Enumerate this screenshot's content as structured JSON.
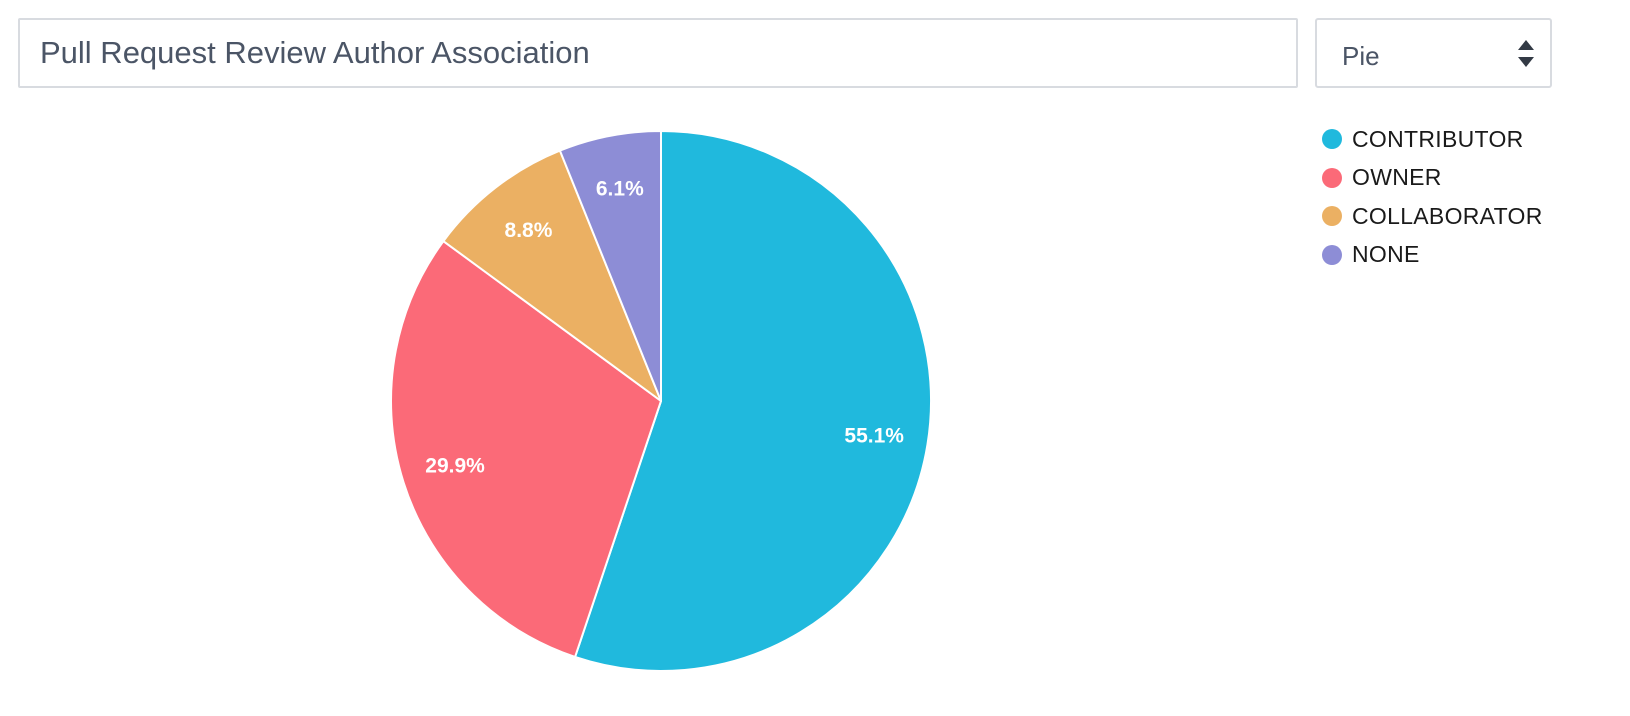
{
  "header": {
    "title_value": "Pull Request Review Author Association",
    "chart_type_value": "Pie"
  },
  "icons": {
    "select_arrows": "updown-arrows-icon"
  },
  "chart_data": {
    "type": "pie",
    "title": "Pull Request Review Author Association",
    "legend_position": "top-right",
    "slices": [
      {
        "label": "CONTRIBUTOR",
        "value": 55.1,
        "display": "55.1%",
        "color": "#20b9dd"
      },
      {
        "label": "OWNER",
        "value": 29.9,
        "display": "29.9%",
        "color": "#fb6a78"
      },
      {
        "label": "COLLABORATOR",
        "value": 8.8,
        "display": "8.8%",
        "color": "#ebb063"
      },
      {
        "label": "NONE",
        "value": 6.1,
        "display": "6.1%",
        "color": "#8d8dd6"
      }
    ]
  }
}
